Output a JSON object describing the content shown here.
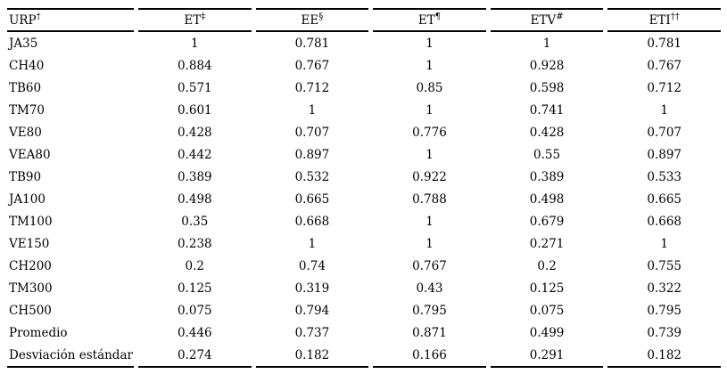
{
  "table": {
    "columns": [
      {
        "label": "URP",
        "sup": "†"
      },
      {
        "label": "ET",
        "sup": "‡"
      },
      {
        "label": "EE",
        "sup": "§"
      },
      {
        "label": "ET",
        "sup": "¶"
      },
      {
        "label": "ETV",
        "sup": "#"
      },
      {
        "label": "ETI",
        "sup": "††"
      }
    ],
    "rows": [
      {
        "label": "JA35",
        "values": [
          "1",
          "0.781",
          "1",
          "1",
          "0.781"
        ]
      },
      {
        "label": "CH40",
        "values": [
          "0.884",
          "0.767",
          "1",
          "0.928",
          "0.767"
        ]
      },
      {
        "label": "TB60",
        "values": [
          "0.571",
          "0.712",
          "0.85",
          "0.598",
          "0.712"
        ]
      },
      {
        "label": "TM70",
        "values": [
          "0.601",
          "1",
          "1",
          "0.741",
          "1"
        ]
      },
      {
        "label": "VE80",
        "values": [
          "0.428",
          "0.707",
          "0.776",
          "0.428",
          "0.707"
        ]
      },
      {
        "label": "VEA80",
        "values": [
          "0.442",
          "0.897",
          "1",
          "0.55",
          "0.897"
        ]
      },
      {
        "label": "TB90",
        "values": [
          "0.389",
          "0.532",
          "0.922",
          "0.389",
          "0.533"
        ]
      },
      {
        "label": "JA100",
        "values": [
          "0.498",
          "0.665",
          "0.788",
          "0.498",
          "0.665"
        ]
      },
      {
        "label": "TM100",
        "values": [
          "0.35",
          "0.668",
          "1",
          "0.679",
          "0.668"
        ]
      },
      {
        "label": "VE150",
        "values": [
          "0.238",
          "1",
          "1",
          "0.271",
          "1"
        ]
      },
      {
        "label": "CH200",
        "values": [
          "0.2",
          "0.74",
          "0.767",
          "0.2",
          "0.755"
        ]
      },
      {
        "label": "TM300",
        "values": [
          "0.125",
          "0.319",
          "0.43",
          "0.125",
          "0.322"
        ]
      },
      {
        "label": "CH500",
        "values": [
          "0.075",
          "0.794",
          "0.795",
          "0.075",
          "0.795"
        ]
      },
      {
        "label": "Promedio",
        "values": [
          "0.446",
          "0.737",
          "0.871",
          "0.499",
          "0.739"
        ]
      },
      {
        "label": "Desviación estándar",
        "values": [
          "0.274",
          "0.182",
          "0.166",
          "0.291",
          "0.182"
        ]
      }
    ],
    "colors": {
      "text": "#000000",
      "background": "#ffffff",
      "rule": "#000000"
    }
  }
}
